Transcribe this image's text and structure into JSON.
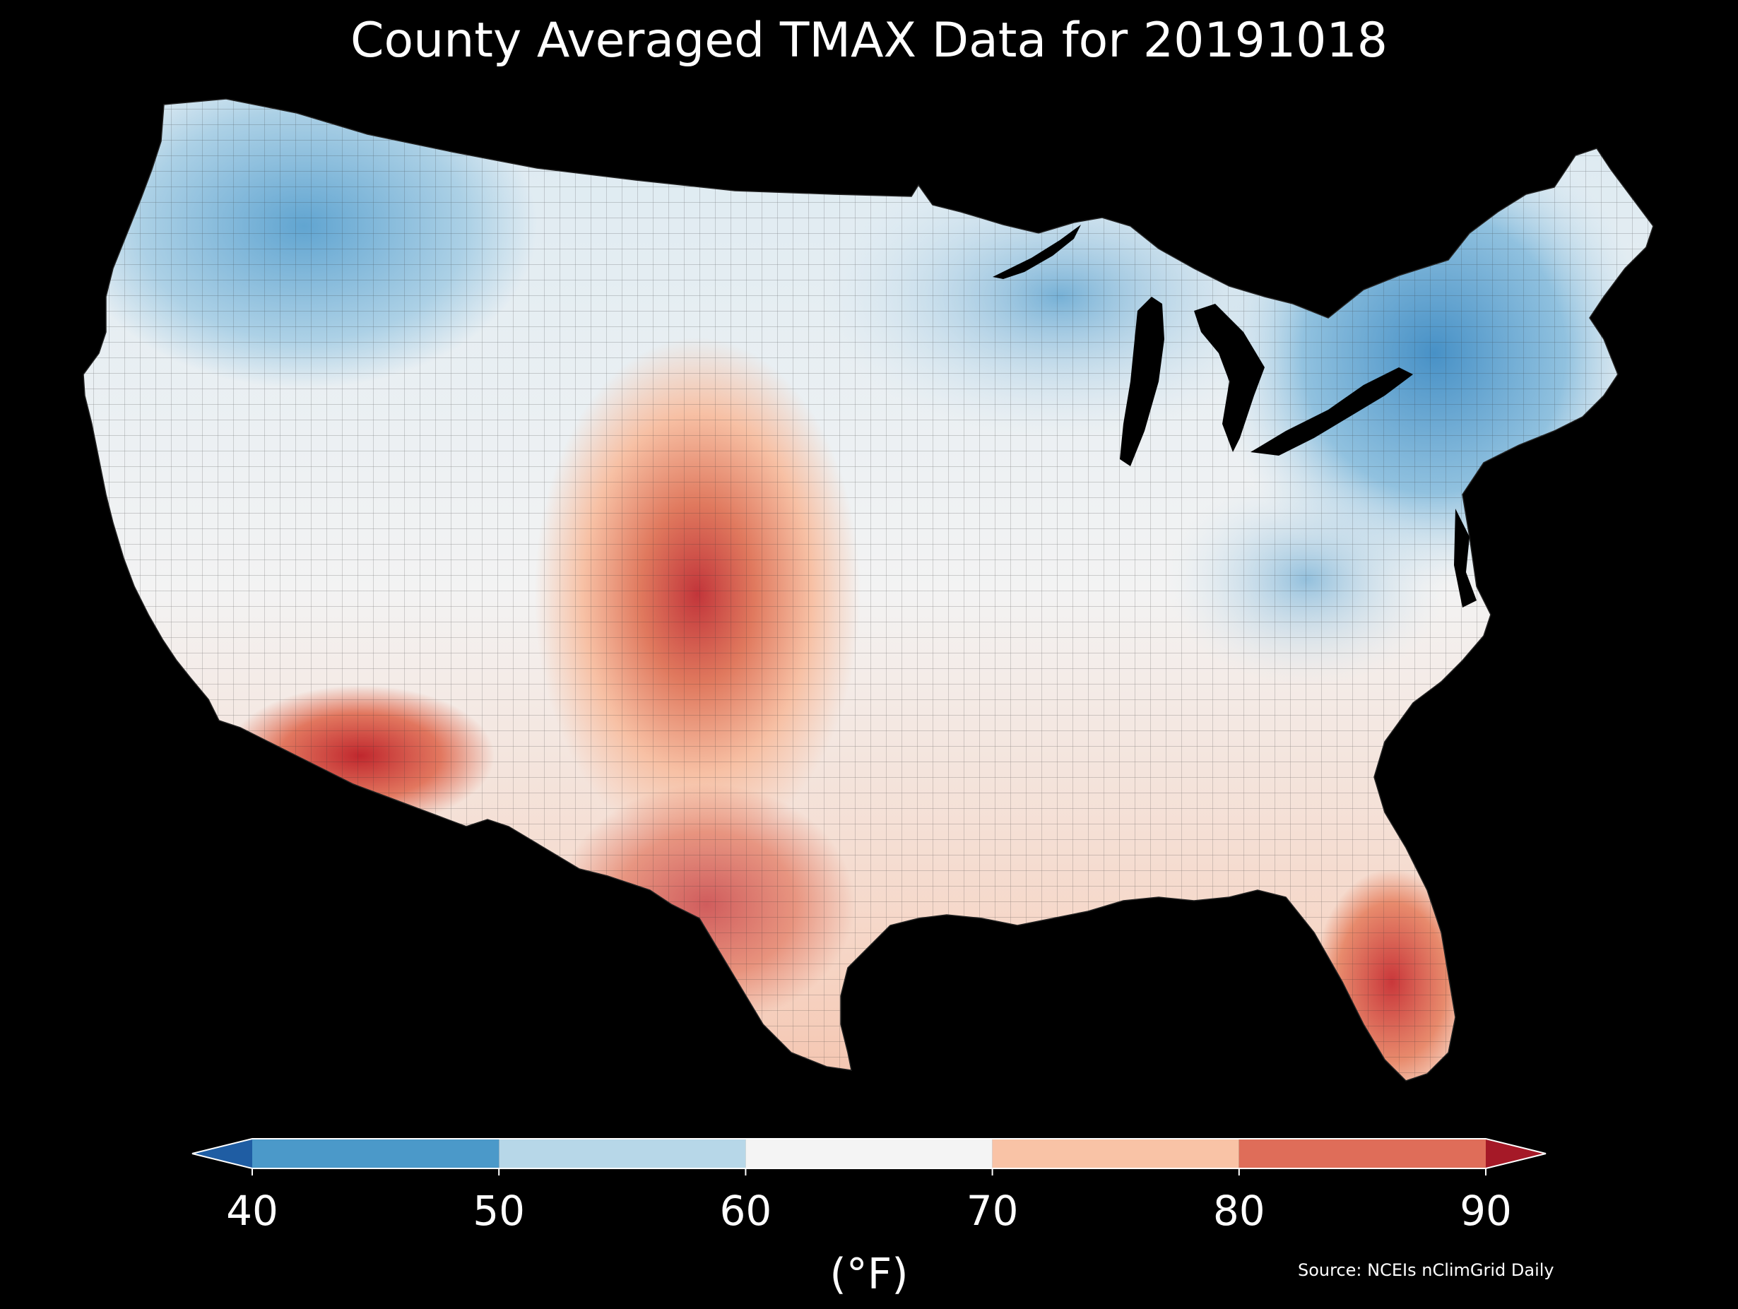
{
  "title": "County Averaged TMAX Data for 20191018",
  "source": "Source: NCEIs nClimGrid Daily",
  "colorbar": {
    "unit_label": "(°F)",
    "ticks": [
      "40",
      "50",
      "60",
      "70",
      "80",
      "90"
    ],
    "bins": [
      {
        "from": 50,
        "to": 60,
        "color": "#b7d7e8"
      },
      {
        "from": 40,
        "to": 50,
        "color": "#4b99c9"
      },
      {
        "from": 60,
        "to": 70,
        "color": "#f4f4f4"
      },
      {
        "from": 70,
        "to": 80,
        "color": "#f9c3a6"
      },
      {
        "from": 80,
        "to": 90,
        "color": "#df6d59"
      }
    ],
    "under_color": "#1f5da3",
    "over_color": "#a51927",
    "extend": "both"
  },
  "map": {
    "region": "Contiguous United States, county level",
    "variable": "TMAX",
    "background": "#000000",
    "color_scale": "RdBu_r"
  }
}
